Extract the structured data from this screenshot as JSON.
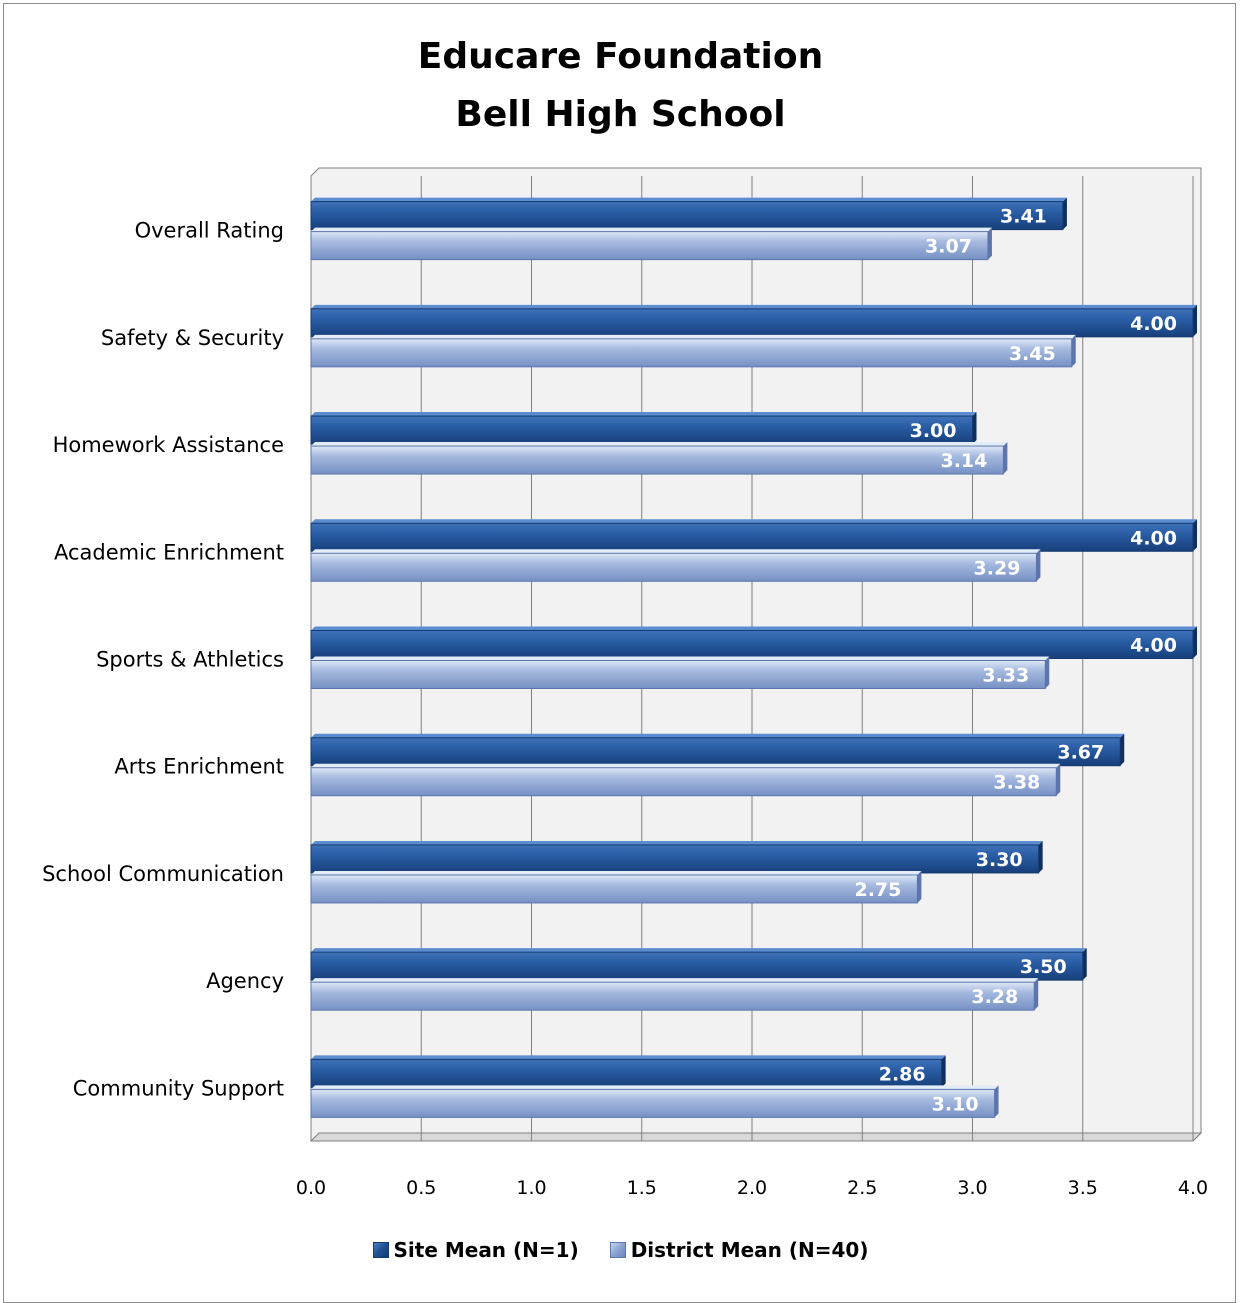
{
  "chart_data": {
    "type": "bar",
    "orientation": "horizontal",
    "title": [
      "Educare Foundation",
      "Bell High School"
    ],
    "categories": [
      "Overall Rating",
      "Safety & Security",
      "Homework Assistance",
      "Academic Enrichment",
      "Sports & Athletics",
      "Arts Enrichment",
      "School Communication",
      "Agency",
      "Community Support"
    ],
    "series": [
      {
        "name": "Site Mean (N=1)",
        "values": [
          3.41,
          4.0,
          3.0,
          4.0,
          4.0,
          3.67,
          3.3,
          3.5,
          2.86
        ],
        "labels": [
          "3.41",
          "4.00",
          "3.00",
          "4.00",
          "4.00",
          "3.67",
          "3.30",
          "3.50",
          "2.86"
        ]
      },
      {
        "name": "District Mean (N=40)",
        "values": [
          3.07,
          3.45,
          3.14,
          3.29,
          3.33,
          3.38,
          2.75,
          3.28,
          3.1
        ],
        "labels": [
          "3.07",
          "3.45",
          "3.14",
          "3.29",
          "3.33",
          "3.38",
          "2.75",
          "3.28",
          "3.10"
        ]
      }
    ],
    "xlim": [
      0,
      4.0
    ],
    "xticks": [
      "0.0",
      "0.5",
      "1.0",
      "1.5",
      "2.0",
      "2.5",
      "3.0",
      "3.5",
      "4.0"
    ],
    "xlabel": "",
    "ylabel": "",
    "grid": true,
    "legend": "bottom",
    "colors": {
      "site": "#1f4f92",
      "district": "#8aa2cf",
      "plot_bg": "#f2f2f2",
      "grid": "#808080"
    }
  }
}
